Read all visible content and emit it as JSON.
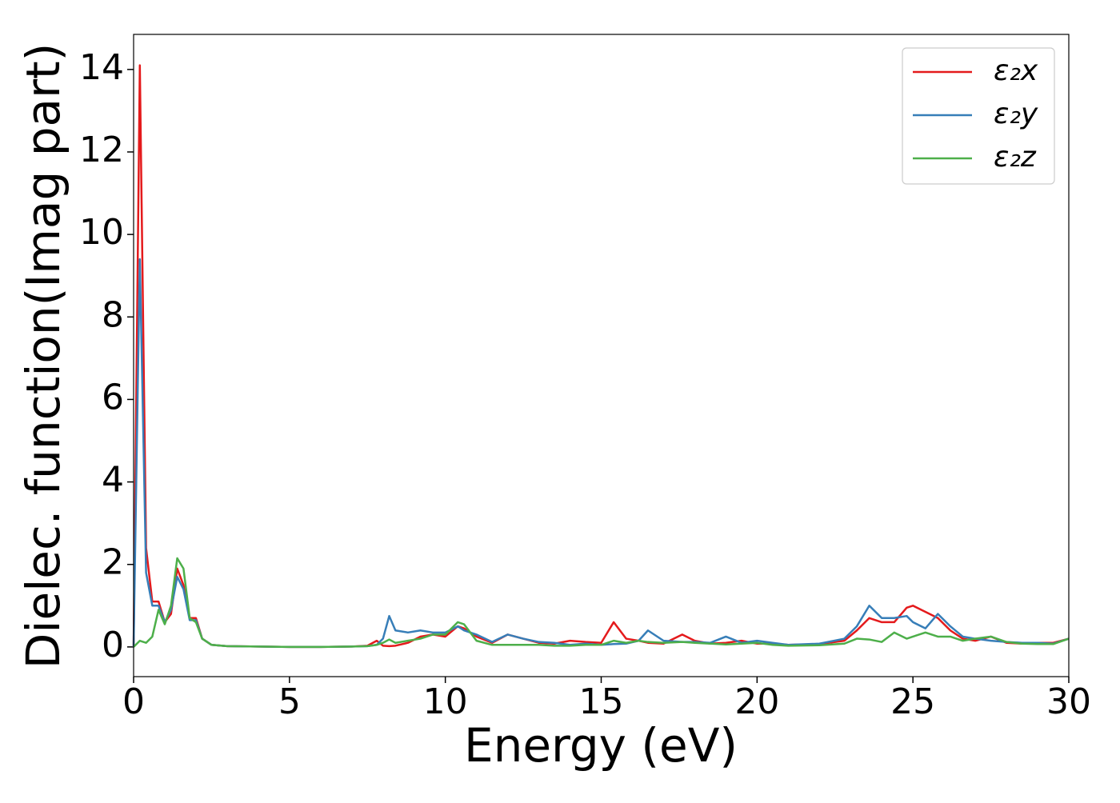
{
  "chart_data": {
    "type": "line",
    "xlabel": "Energy (eV)",
    "ylabel": "Dielec. function(Imag part)",
    "x": [
      0,
      0.2,
      0.4,
      0.6,
      0.8,
      1.0,
      1.2,
      1.4,
      1.6,
      1.8,
      2.0,
      2.2,
      2.5,
      3,
      4,
      5,
      6,
      7,
      7.5,
      7.8,
      8.0,
      8.2,
      8.4,
      8.8,
      9.2,
      9.6,
      10.0,
      10.4,
      10.6,
      11.0,
      11.5,
      12.0,
      12.5,
      13.0,
      13.5,
      14.0,
      14.5,
      15.0,
      15.4,
      15.8,
      16.2,
      16.5,
      17.0,
      17.6,
      18.0,
      18.5,
      19.0,
      19.5,
      20.0,
      20.5,
      21.0,
      22.0,
      22.8,
      23.2,
      23.6,
      24.0,
      24.4,
      24.8,
      25.0,
      25.4,
      25.8,
      26.2,
      26.6,
      27.0,
      27.5,
      28.0,
      28.5,
      29.0,
      29.5,
      30.0
    ],
    "series": [
      {
        "name": "ε₂x",
        "color": "#e41a1c",
        "values": [
          0.0,
          14.1,
          2.4,
          1.1,
          1.1,
          0.6,
          0.8,
          1.9,
          1.5,
          0.7,
          0.7,
          0.2,
          0.05,
          0.02,
          0.01,
          0.0,
          0.0,
          0.01,
          0.03,
          0.15,
          0.03,
          0.02,
          0.03,
          0.1,
          0.25,
          0.3,
          0.25,
          0.5,
          0.45,
          0.25,
          0.1,
          0.3,
          0.2,
          0.1,
          0.08,
          0.15,
          0.12,
          0.1,
          0.6,
          0.2,
          0.15,
          0.1,
          0.08,
          0.3,
          0.15,
          0.08,
          0.1,
          0.15,
          0.08,
          0.08,
          0.05,
          0.07,
          0.15,
          0.4,
          0.7,
          0.6,
          0.6,
          0.95,
          1.0,
          0.85,
          0.7,
          0.4,
          0.2,
          0.15,
          0.25,
          0.1,
          0.08,
          0.1,
          0.1,
          0.2
        ]
      },
      {
        "name": "ε₂y",
        "color": "#377eb8",
        "values": [
          0.0,
          9.4,
          1.8,
          1.0,
          1.0,
          0.6,
          0.9,
          1.7,
          1.4,
          0.65,
          0.65,
          0.2,
          0.05,
          0.02,
          0.01,
          0.0,
          0.0,
          0.01,
          0.02,
          0.05,
          0.2,
          0.75,
          0.4,
          0.35,
          0.4,
          0.35,
          0.35,
          0.5,
          0.4,
          0.3,
          0.12,
          0.3,
          0.2,
          0.12,
          0.1,
          0.05,
          0.08,
          0.05,
          0.07,
          0.08,
          0.15,
          0.4,
          0.15,
          0.12,
          0.12,
          0.1,
          0.25,
          0.1,
          0.15,
          0.1,
          0.05,
          0.08,
          0.2,
          0.5,
          1.0,
          0.7,
          0.7,
          0.75,
          0.6,
          0.45,
          0.8,
          0.5,
          0.25,
          0.2,
          0.15,
          0.12,
          0.1,
          0.1,
          0.08,
          0.2
        ]
      },
      {
        "name": "ε₂z",
        "color": "#4daf4a",
        "values": [
          0.0,
          0.15,
          0.1,
          0.25,
          0.9,
          0.55,
          1.0,
          2.15,
          1.9,
          0.7,
          0.6,
          0.2,
          0.05,
          0.02,
          0.01,
          0.0,
          0.0,
          0.01,
          0.02,
          0.05,
          0.1,
          0.18,
          0.1,
          0.15,
          0.2,
          0.3,
          0.3,
          0.6,
          0.55,
          0.15,
          0.05,
          0.05,
          0.05,
          0.05,
          0.03,
          0.03,
          0.05,
          0.05,
          0.15,
          0.1,
          0.15,
          0.12,
          0.1,
          0.12,
          0.1,
          0.08,
          0.06,
          0.08,
          0.1,
          0.05,
          0.03,
          0.04,
          0.08,
          0.2,
          0.18,
          0.12,
          0.35,
          0.2,
          0.25,
          0.35,
          0.25,
          0.25,
          0.15,
          0.2,
          0.25,
          0.12,
          0.08,
          0.07,
          0.07,
          0.2
        ]
      }
    ],
    "xlim": [
      0,
      30
    ],
    "xticks": [
      0,
      5,
      10,
      15,
      20,
      25,
      30
    ],
    "ylim": [
      -0.72,
      14.85
    ],
    "yticks": [
      0,
      2,
      4,
      6,
      8,
      10,
      12,
      14
    ],
    "legend": "upper right"
  }
}
